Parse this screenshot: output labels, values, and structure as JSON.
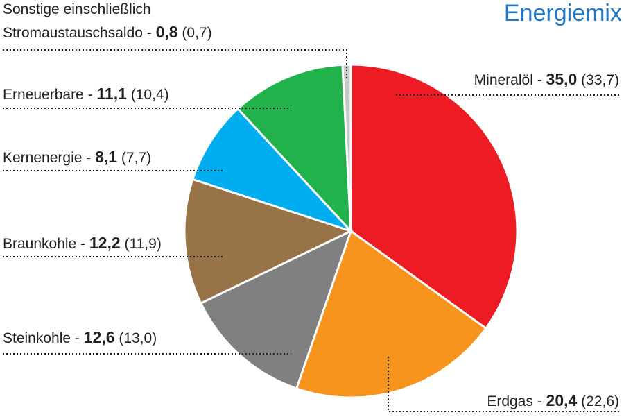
{
  "chart_data": {
    "type": "pie",
    "title": "Energiemix",
    "slices": [
      {
        "name": "Mineralöl",
        "value": 35.0,
        "prev": "33,7",
        "value_label": "35,0",
        "color": "#ed1c24"
      },
      {
        "name": "Erdgas",
        "value": 20.4,
        "prev": "22,6",
        "value_label": "20,4",
        "color": "#f7941d"
      },
      {
        "name": "Steinkohle",
        "value": 12.6,
        "prev": "13,0",
        "value_label": "12,6",
        "color": "#808080"
      },
      {
        "name": "Braunkohle",
        "value": 12.2,
        "prev": "11,9",
        "value_label": "12,2",
        "color": "#977347"
      },
      {
        "name": "Kernenergie",
        "value": 8.1,
        "prev": "7,7",
        "value_label": "8,1",
        "color": "#00aeef"
      },
      {
        "name": "Erneuerbare",
        "value": 11.1,
        "prev": "10,4",
        "value_label": "11,1",
        "color": "#22b24c"
      },
      {
        "name": "Sonstige einschließlich Stromaustauschsaldo",
        "value": 0.8,
        "prev": "0,7",
        "value_label": "0,8",
        "color": "#c8c8c8"
      }
    ],
    "labels": {
      "Mineralöl": [
        "Mineralöl"
      ],
      "Erdgas": [
        "Erdgas"
      ],
      "Steinkohle": [
        "Steinkohle"
      ],
      "Braunkohle": [
        "Braunkohle"
      ],
      "Kernenergie": [
        "Kernenergie"
      ],
      "Erneuerbare": [
        "Erneuerbare"
      ],
      "Sonstige einschließlich Stromaustauschsaldo": [
        "Sonstige einschließlich",
        "Stromaustauschsaldo"
      ]
    }
  }
}
